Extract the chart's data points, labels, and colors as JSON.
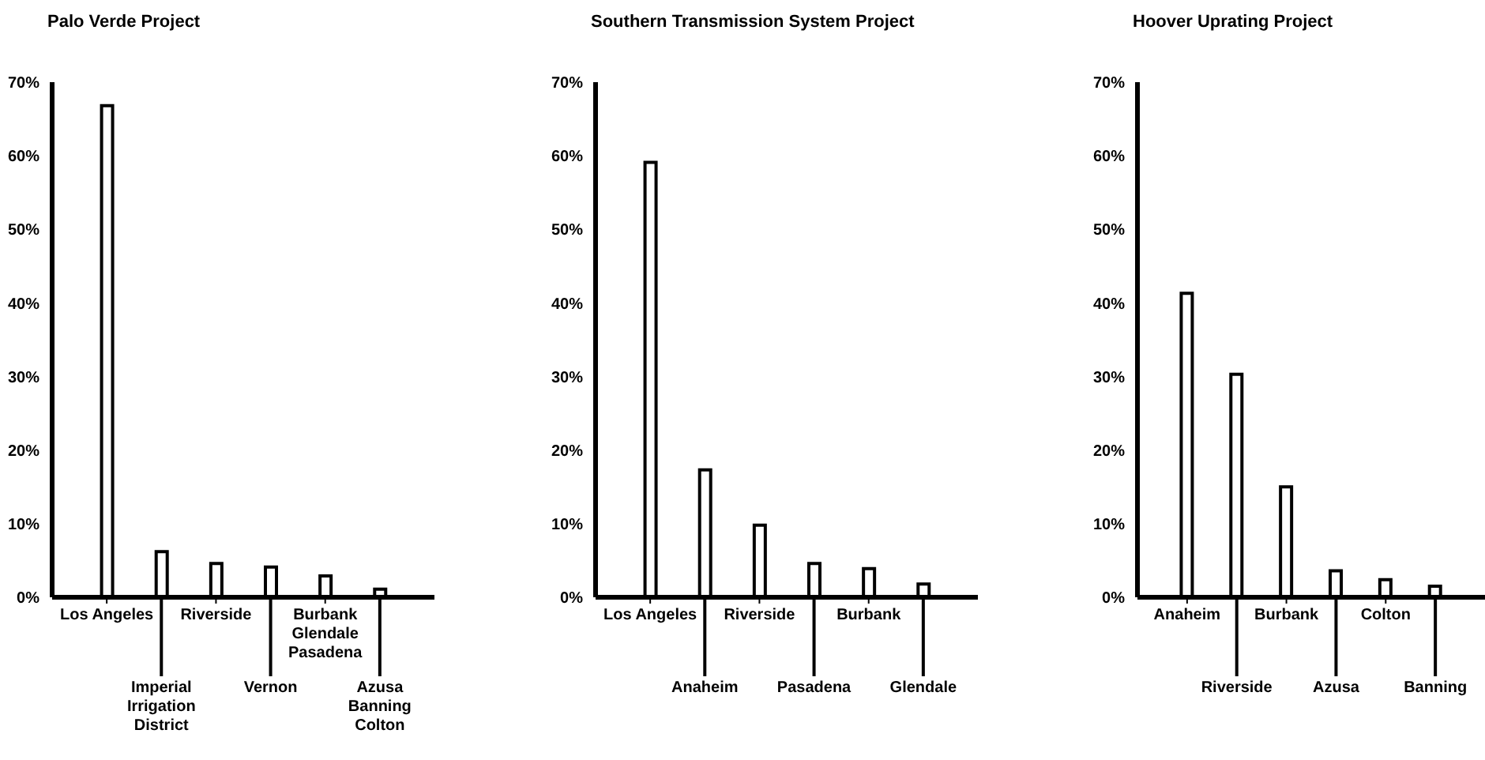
{
  "chart_data": [
    {
      "type": "bar",
      "title": "Palo Verde Project",
      "categories": [
        "Los Angeles",
        "Imperial\nIrrigation\nDistrict",
        "Riverside",
        "Vernon",
        "Burbank\nGlendale\nPasadena",
        "Azusa\nBanning\nColton"
      ],
      "values": [
        66.8,
        6.2,
        4.6,
        4.1,
        2.9,
        1.1
      ],
      "color": "#ffffff",
      "ylim": [
        0,
        70
      ],
      "yticks": [
        {
          "value": 0,
          "label": "0%"
        },
        {
          "value": 10,
          "label": "10%"
        },
        {
          "value": 20,
          "label": "20%"
        },
        {
          "value": 30,
          "label": "30%"
        },
        {
          "value": 40,
          "label": "40%"
        },
        {
          "value": 50,
          "label": "50%"
        },
        {
          "value": 60,
          "label": "60%"
        },
        {
          "value": 70,
          "label": "70%"
        }
      ],
      "grid": false,
      "legend": false
    },
    {
      "type": "bar",
      "title": "Southern Transmission System Project",
      "categories": [
        "Los Angeles",
        "Anaheim",
        "Riverside",
        "Pasadena",
        "Burbank",
        "Glendale"
      ],
      "values": [
        59.1,
        17.3,
        9.8,
        4.6,
        3.9,
        1.8
      ],
      "color": "#ffffff",
      "ylim": [
        0,
        70
      ],
      "yticks": [
        {
          "value": 0,
          "label": "0%"
        },
        {
          "value": 10,
          "label": "10%"
        },
        {
          "value": 20,
          "label": "20%"
        },
        {
          "value": 30,
          "label": "30%"
        },
        {
          "value": 40,
          "label": "40%"
        },
        {
          "value": 50,
          "label": "50%"
        },
        {
          "value": 60,
          "label": "60%"
        },
        {
          "value": 70,
          "label": "70%"
        }
      ],
      "grid": false,
      "legend": false
    },
    {
      "type": "bar",
      "title": "Hoover Uprating Project",
      "categories": [
        "Anaheim",
        "Riverside",
        "Burbank",
        "Azusa",
        "Colton",
        "Banning"
      ],
      "values": [
        41.3,
        30.3,
        15.0,
        3.6,
        2.4,
        1.5
      ],
      "color": "#ffffff",
      "ylim": [
        0,
        70
      ],
      "yticks": [
        {
          "value": 0,
          "label": "0%"
        },
        {
          "value": 10,
          "label": "10%"
        },
        {
          "value": 20,
          "label": "20%"
        },
        {
          "value": 30,
          "label": "30%"
        },
        {
          "value": 40,
          "label": "40%"
        },
        {
          "value": 50,
          "label": "50%"
        },
        {
          "value": 60,
          "label": "60%"
        },
        {
          "value": 70,
          "label": "70%"
        }
      ],
      "grid": false,
      "legend": false
    }
  ]
}
